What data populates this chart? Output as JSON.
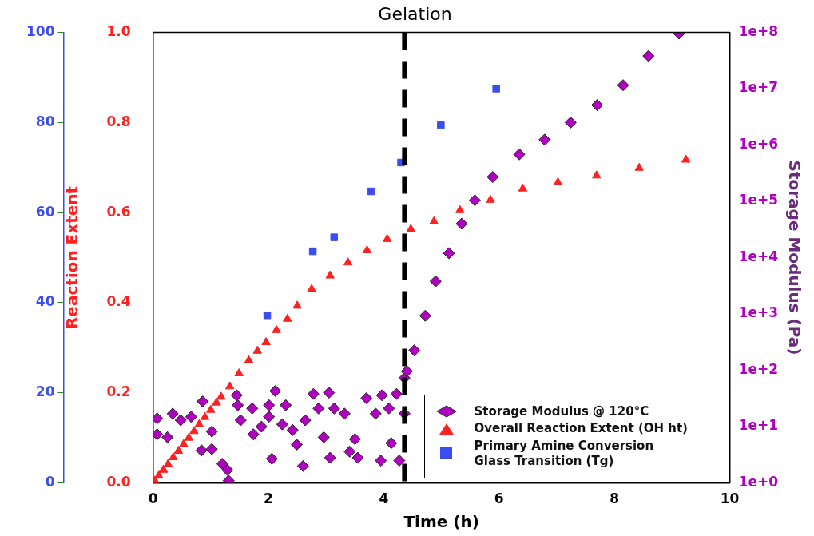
{
  "chart_data": {
    "type": "scatter",
    "title": "Gelation",
    "xlabel": "Time (h)",
    "ylabel": "Reaction Extent",
    "y2label": "Storage Modulus (Pa)",
    "xlim": [
      0,
      10
    ],
    "xticks": [
      0,
      2,
      4,
      6,
      8,
      10
    ],
    "ylim": [
      0,
      1
    ],
    "yticks": [
      {
        "value": 0,
        "label": "0.0"
      },
      {
        "value": 0.2,
        "label": "0.2"
      },
      {
        "value": 0.4,
        "label": "0.4"
      },
      {
        "value": 0.6,
        "label": "0.6"
      },
      {
        "value": 0.8,
        "label": "0.8"
      },
      {
        "value": 1,
        "label": "1.0"
      }
    ],
    "y2lim": [
      1,
      100000000
    ],
    "y2ticks": [
      {
        "value": 1,
        "label": "1e+0"
      },
      {
        "value": 10,
        "label": "1e+1"
      },
      {
        "value": 100,
        "label": "1e+2"
      },
      {
        "value": 1000,
        "label": "1e+3"
      },
      {
        "value": 10000,
        "label": "1e+4"
      },
      {
        "value": 100000,
        "label": "1e+5"
      },
      {
        "value": 1000000,
        "label": "1e+6"
      },
      {
        "value": 10000000,
        "label": "1e+7"
      },
      {
        "value": 100000000,
        "label": "1e+8"
      }
    ],
    "y3lim": [
      0,
      100
    ],
    "y3ticks": [
      0,
      20,
      40,
      60,
      80,
      100
    ],
    "log": "y2",
    "grid": false,
    "legend": "bottom right",
    "ref_lines": [
      {
        "axis": "x",
        "value": 4.36,
        "color": "#000000",
        "line_style": "dashed"
      }
    ],
    "series": [
      {
        "name": "Storage Modulus @ 120°C",
        "color": "#b000c0",
        "marker": "diamond",
        "axis": "y2",
        "x": [
          0.07,
          0.07,
          0.25,
          0.34,
          0.48,
          0.66,
          0.86,
          0.84,
          1.02,
          1.02,
          1.2,
          1.29,
          1.31,
          1.45,
          1.47,
          1.52,
          1.72,
          1.74,
          1.88,
          2.01,
          2.01,
          2.06,
          2.12,
          2.24,
          2.3,
          2.42,
          2.49,
          2.6,
          2.64,
          2.78,
          2.87,
          2.96,
          3.05,
          3.07,
          3.14,
          3.32,
          3.41,
          3.5,
          3.55,
          3.7,
          3.86,
          3.95,
          3.97,
          4.09,
          4.13,
          4.22,
          4.27,
          4.36,
          4.36,
          4.4,
          4.53,
          4.72,
          4.9,
          5.13,
          5.35,
          5.58,
          5.89,
          6.35,
          6.79,
          7.24,
          7.7,
          8.15,
          8.59,
          9.12
        ],
        "values": [
          14,
          7.3,
          6.5,
          17,
          13,
          15,
          28,
          3.8,
          4,
          8.2,
          2.2,
          1.7,
          1.1,
          36,
          24,
          13,
          21,
          7.3,
          10,
          24,
          15,
          2.7,
          43,
          11,
          24,
          8.7,
          4.8,
          2,
          13,
          38,
          21,
          6.5,
          40,
          2.8,
          21,
          17,
          3.6,
          6,
          2.8,
          32,
          17,
          2.5,
          36,
          21,
          5.1,
          38,
          2.5,
          17,
          73,
          96,
          226,
          930,
          3800,
          12000,
          40000,
          104000,
          270000,
          680000,
          1240000,
          2500000,
          5100000,
          11500000,
          38000000,
          95000000
        ]
      },
      {
        "name": "Overall Reaction Extent (OH ht)",
        "color": "#ff2020",
        "marker": "triangle",
        "axis": "y",
        "x": [
          0.03,
          0.1,
          0.18,
          0.26,
          0.35,
          0.44,
          0.53,
          0.62,
          0.71,
          0.8,
          0.9,
          1.0,
          1.1,
          1.18,
          1.33,
          1.49,
          1.66,
          1.81,
          1.96,
          2.14,
          2.33,
          2.5,
          2.75,
          3.07,
          3.38,
          3.71,
          4.06,
          4.47,
          4.87,
          5.32,
          5.85,
          6.41,
          7.02,
          7.69,
          8.43,
          9.24
        ],
        "values": [
          0.005,
          0.016,
          0.029,
          0.042,
          0.057,
          0.071,
          0.086,
          0.1,
          0.115,
          0.13,
          0.146,
          0.162,
          0.178,
          0.191,
          0.214,
          0.243,
          0.272,
          0.293,
          0.312,
          0.339,
          0.364,
          0.393,
          0.43,
          0.46,
          0.489,
          0.516,
          0.541,
          0.563,
          0.58,
          0.605,
          0.628,
          0.653,
          0.667,
          0.682,
          0.699,
          0.717
        ]
      },
      {
        "name": "Primary Amine Conversion\nGlass Transition  (Tg)",
        "color": "#3b4cf0",
        "marker": "square",
        "axis": "y3",
        "x": [
          1.98,
          2.77,
          3.14,
          3.78,
          4.3,
          4.99,
          5.95
        ],
        "values": [
          37.2,
          51.4,
          54.5,
          64.7,
          71.1,
          79.4,
          87.5
        ]
      }
    ]
  }
}
